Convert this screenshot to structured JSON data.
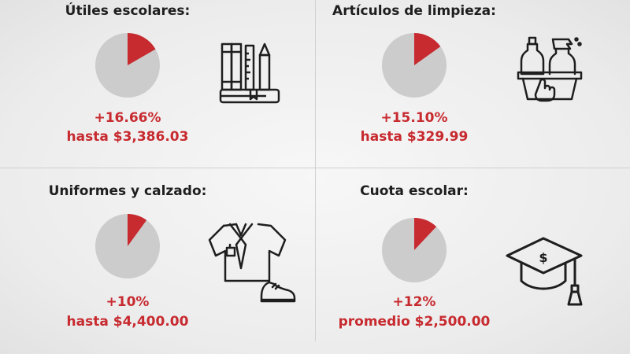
{
  "colors": {
    "accent": "#c72a2f",
    "pie_rest": "#cccccc",
    "ink": "#1e1e1e"
  },
  "chart_data": [
    {
      "type": "pie",
      "title": "Útiles escolares:",
      "values": [
        16.66,
        83.34
      ],
      "change": "+16.66%",
      "amount": "hasta $3,386.03",
      "icon": "school-supplies-icon"
    },
    {
      "type": "pie",
      "title": "Artículos de limpieza:",
      "values": [
        15.1,
        84.9
      ],
      "change": "+15.10%",
      "amount": "hasta $329.99",
      "icon": "cleaning-supplies-icon"
    },
    {
      "type": "pie",
      "title": "Uniformes y calzado:",
      "values": [
        10,
        90
      ],
      "change": "+10%",
      "amount": "hasta $4,400.00",
      "icon": "uniform-shoe-icon"
    },
    {
      "type": "pie",
      "title": "Cuota escolar:",
      "values": [
        12,
        88
      ],
      "change": "+12%",
      "amount": "promedio $2,500.00",
      "icon": "graduation-cap-icon"
    }
  ]
}
